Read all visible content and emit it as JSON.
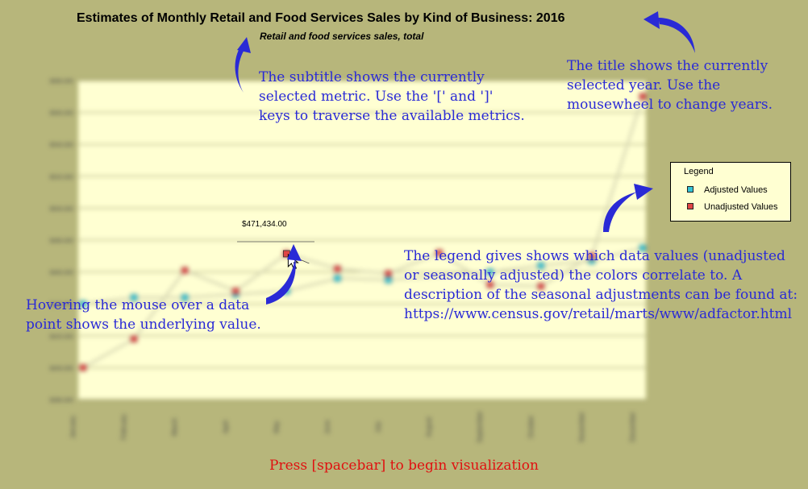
{
  "header": {
    "title": "Estimates of Monthly Retail and Food Services Sales by Kind of Business: 2016",
    "subtitle": "Retail and food services sales, total"
  },
  "annotations": {
    "subtitle_note": [
      "The subtitle shows the currently",
      "selected metric. Use the '[' and ']'",
      "keys to traverse the available metrics."
    ],
    "title_note": [
      "The title shows the currently",
      "selected year. Use the",
      "mousewheel to change years."
    ],
    "legend_note": [
      "The legend gives shows which data values (unadjusted",
      "or seasonally adjusted) the colors correlate to. A",
      "description of the seasonal adjustments can be found at:",
      "https://www.census.gov/retail/marts/www/adfactor.html"
    ],
    "hover_note": [
      "Hovering the mouse over a data",
      "point shows the underlying value."
    ]
  },
  "legend": {
    "title": "Legend",
    "items": [
      {
        "label": "Adjusted Values",
        "color": "#33c3d6"
      },
      {
        "label": "Unadjusted Values",
        "color": "#e04545"
      }
    ]
  },
  "tooltip": {
    "value": "$471,434.00"
  },
  "instruction": "Press [spacebar] to begin visualization",
  "colors": {
    "background": "#b7b67b",
    "plot_area": "#ffffd2",
    "annotation_text": "#2a2ad6",
    "instruction_text": "#e01010",
    "arrow": "#2a2ad6"
  },
  "chart_data": {
    "type": "line",
    "categories": [
      "January",
      "February",
      "March",
      "April",
      "May",
      "June",
      "July",
      "August",
      "September",
      "October",
      "November",
      "December"
    ],
    "series": [
      {
        "name": "Adjusted Values",
        "values": [
          440,
          444,
          444,
          446,
          448,
          456,
          455,
          null,
          460,
          464,
          467,
          475
        ]
      },
      {
        "name": "Unadjusted Values",
        "values": [
          400,
          418,
          461,
          448,
          471.434,
          462,
          459,
          472,
          452,
          451,
          470,
          570
        ]
      }
    ],
    "ylim": [
      380,
      580
    ],
    "grid": true,
    "legend_position": "right"
  }
}
